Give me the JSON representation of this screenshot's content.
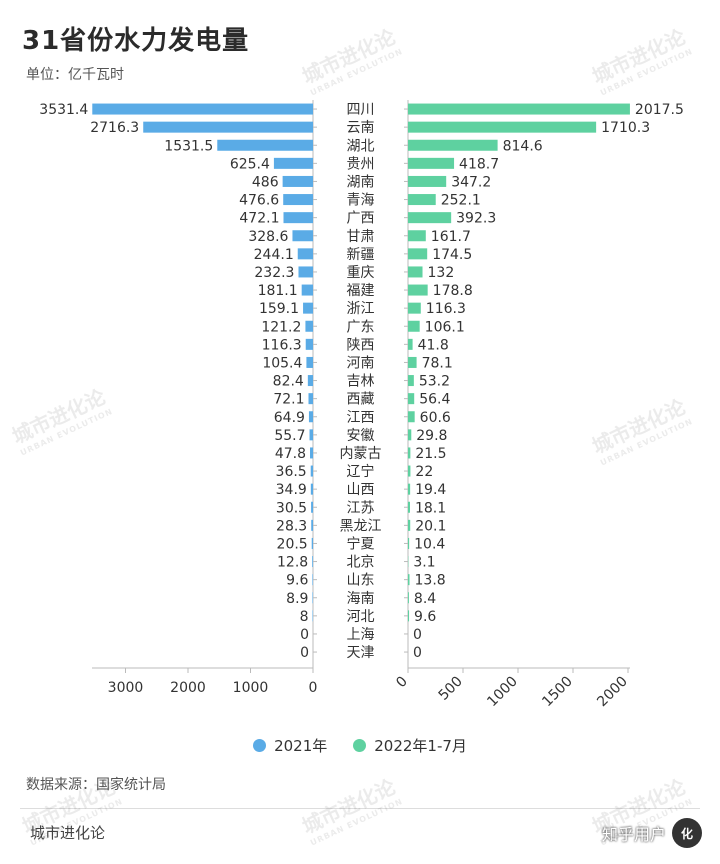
{
  "header": {
    "title": "31省份水力发电量",
    "unit": "单位：亿千瓦时"
  },
  "chart_data": {
    "type": "bar",
    "orientation": "horizontal-butterfly",
    "categories": [
      "四川",
      "云南",
      "湖北",
      "贵州",
      "湖南",
      "青海",
      "广西",
      "甘肃",
      "新疆",
      "重庆",
      "福建",
      "浙江",
      "广东",
      "陕西",
      "河南",
      "吉林",
      "西藏",
      "江西",
      "安徽",
      "内蒙古",
      "辽宁",
      "山西",
      "江苏",
      "黑龙江",
      "宁夏",
      "北京",
      "山东",
      "海南",
      "河北",
      "上海",
      "天津"
    ],
    "series": [
      {
        "name": "2021年",
        "color": "#5aabe6",
        "values": [
          3531.4,
          2716.3,
          1531.5,
          625.4,
          486,
          476.6,
          472.1,
          328.6,
          244.1,
          232.3,
          181.1,
          159.1,
          121.2,
          116.3,
          105.4,
          82.4,
          72.1,
          64.9,
          55.7,
          47.8,
          36.5,
          34.9,
          30.5,
          28.3,
          20.5,
          12.8,
          9.6,
          8.9,
          8,
          0,
          0
        ]
      },
      {
        "name": "2022年1-7月",
        "color": "#5ed1a0",
        "values": [
          2017.5,
          1710.3,
          814.6,
          418.7,
          347.2,
          252.1,
          392.3,
          161.7,
          174.5,
          132,
          178.8,
          116.3,
          106.1,
          41.8,
          78.1,
          53.2,
          56.4,
          60.6,
          29.8,
          21.5,
          22,
          19.4,
          18.1,
          20.1,
          10.4,
          3.1,
          13.8,
          8.4,
          9.6,
          0,
          0
        ]
      }
    ],
    "left_axis": {
      "ticks": [
        3000,
        2000,
        1000,
        0
      ],
      "range": [
        0,
        3600
      ]
    },
    "right_axis": {
      "ticks": [
        0,
        500,
        1000,
        1500,
        2000
      ],
      "range": [
        0,
        2000
      ]
    },
    "legend": "bottom-center"
  },
  "footer": {
    "source": "数据来源：国家统计局",
    "brand": "城市进化论",
    "badge": "知乎用户",
    "badge_logo": "化"
  },
  "watermark": {
    "text": "城市进化论",
    "sub": "URBAN EVOLUTION"
  }
}
